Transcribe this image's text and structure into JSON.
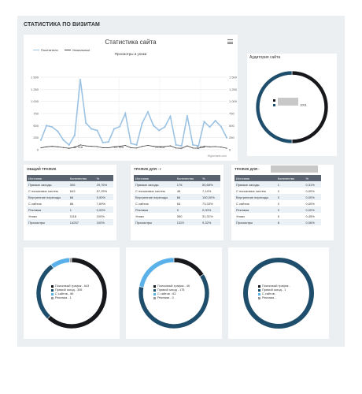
{
  "page": {
    "title": "СТАТИСТИКА ПО ВИЗИТАМ"
  },
  "chart_data": {
    "type": "line",
    "title": "Статистика сайта",
    "subtitle": "Просмотры и уники",
    "ylim": [
      0,
      1500
    ],
    "yticks": [
      "1 500",
      "1 250",
      "1 000",
      "750",
      "500",
      "250",
      "0"
    ],
    "right_yticks": [
      "1 500",
      "1 250",
      "1 000",
      "750",
      "500",
      "250",
      "0"
    ],
    "xlabels": [
      "15. Янв",
      "22. Янв",
      "29. Янв",
      "5. Фев"
    ],
    "credit": "Highcharts.com",
    "series": [
      {
        "name": "Посетители",
        "color": "#9cc3e3",
        "values": [
          200,
          500,
          470,
          380,
          200,
          100,
          300,
          1450,
          550,
          430,
          400,
          150,
          160,
          430,
          480,
          750,
          130,
          100,
          550,
          780,
          500,
          400,
          470,
          690,
          100,
          80,
          700,
          100,
          80,
          580,
          470,
          600,
          480,
          250
        ]
      },
      {
        "name": "Уникальные",
        "color": "#444444",
        "values": [
          40,
          60,
          70,
          60,
          45,
          30,
          50,
          100,
          80,
          70,
          65,
          40,
          40,
          60,
          70,
          90,
          40,
          35,
          70,
          90,
          70,
          60,
          65,
          80,
          35,
          30,
          80,
          35,
          30,
          70,
          60,
          65,
          55,
          30
        ]
      }
    ]
  },
  "audience": {
    "title": "Аудитория сайта",
    "label_b": "1001",
    "ring": [
      0.5,
      0.5
    ],
    "colors": {
      "dark": "#17181c",
      "blue": "#1f4e6c"
    }
  },
  "tables": [
    {
      "title": "ОБЩИЙ ТРАФИК",
      "headers": [
        "Источник",
        "Количество",
        "%"
      ],
      "rows": [
        [
          "Прямые заходы",
          "305",
          "29,76%"
        ],
        [
          "С поисковых систем",
          "643",
          "57,25%"
        ],
        [
          "Внутренние переходы",
          "66",
          "5,90%"
        ],
        [
          "С сайтов",
          "86",
          "7,69%"
        ],
        [
          "Реклама",
          "1",
          "0,09%"
        ],
        [
          "Уники",
          "1118",
          "100%"
        ],
        [
          "Просмотры",
          "14257",
          "100%"
        ]
      ]
    },
    {
      "title": "ТРАФИК ДЛЯ - I",
      "headers": [
        "Источник",
        "Количество",
        "%"
      ],
      "rows": [
        [
          "Прямые заходы",
          "175",
          "50,68%"
        ],
        [
          "С поисковых систем",
          "46",
          "7,14%"
        ],
        [
          "Внутренние переходы",
          "66",
          "100,00%"
        ],
        [
          "С сайтов",
          "63",
          "73,33%"
        ],
        [
          "Реклама",
          "0",
          "0,00%"
        ],
        [
          "Уники",
          "350",
          "31,31%"
        ],
        [
          "Просмотры",
          "1329",
          "9,32%"
        ]
      ]
    },
    {
      "title": "ТРАФИК ДЛЯ -",
      "headers": [
        "Источник",
        "Количество",
        "%"
      ],
      "rows": [
        [
          "Прямые заходы",
          "1",
          "0,31%"
        ],
        [
          "С поисковых систем",
          "0",
          "0,00%"
        ],
        [
          "Внутренние переходы",
          "0",
          "0,00%"
        ],
        [
          "С сайтов",
          "0",
          "0,00%"
        ],
        [
          "Реклама",
          "0",
          "0,00%"
        ],
        [
          "Уники",
          "5",
          "0,45%"
        ],
        [
          "Просмотры",
          "8",
          "0,06%"
        ]
      ]
    }
  ],
  "pies": [
    {
      "legend": [
        "Поисковый трафик - 643",
        "Прямой заход - 305",
        "С сайтов - 86",
        "Реклама - 1"
      ],
      "colors": [
        "#17181c",
        "#1f4e6c",
        "#5ab0e8",
        "#999999"
      ],
      "fractions": [
        0.62,
        0.28,
        0.09,
        0.01
      ]
    },
    {
      "legend": [
        "Поисковый трафик - 46",
        "Прямой заход - 175",
        "С сайтов - 63",
        "Реклама - 0"
      ],
      "colors": [
        "#17181c",
        "#1f4e6c",
        "#5ab0e8",
        "#999999"
      ],
      "fractions": [
        0.16,
        0.62,
        0.22,
        0.0
      ]
    },
    {
      "legend": [
        "Поисковый трафик -",
        "Прямой заход - 1",
        "С сайтов -",
        "Реклама -"
      ],
      "colors": [
        "#17181c",
        "#1f4e6c",
        "#5ab0e8",
        "#999999"
      ],
      "fractions": [
        0.0,
        1.0,
        0.0,
        0.0
      ]
    }
  ]
}
